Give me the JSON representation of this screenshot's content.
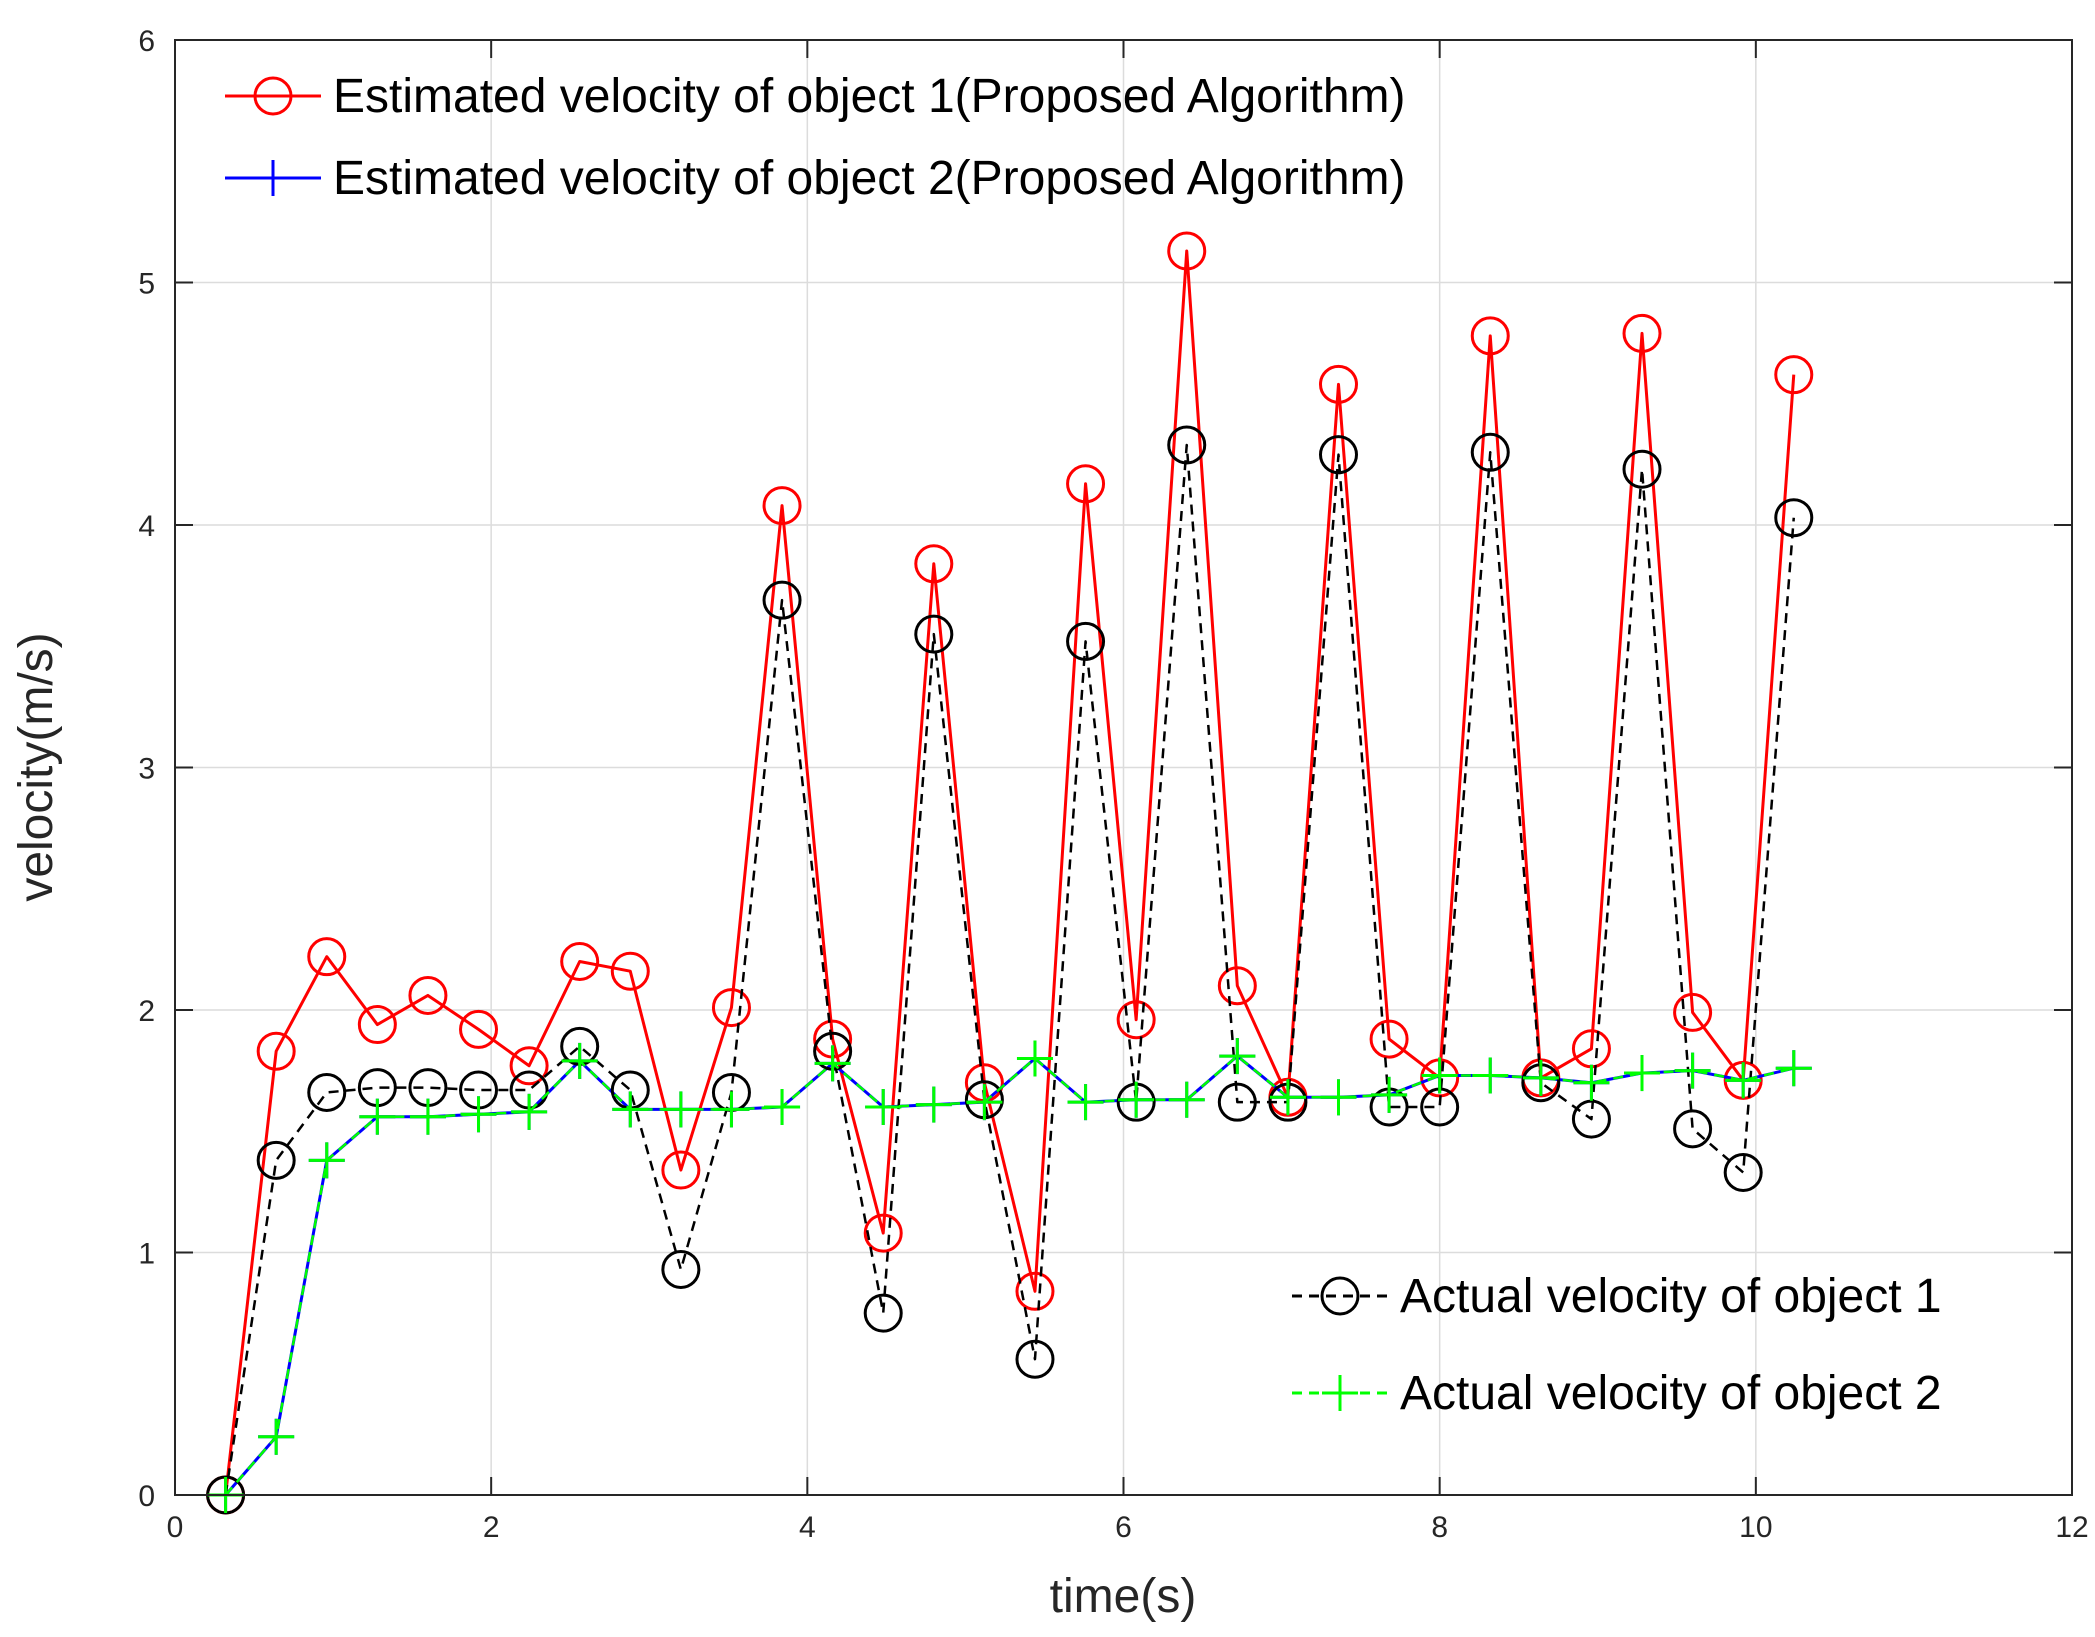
{
  "chart_data": {
    "type": "line",
    "title": "",
    "xlabel": "time(s)",
    "ylabel": "velocity(m/s)",
    "xlim": [
      0,
      12
    ],
    "ylim": [
      0,
      6
    ],
    "xticks": [
      0,
      2,
      4,
      6,
      8,
      10,
      12
    ],
    "yticks": [
      0,
      1,
      2,
      3,
      4,
      5,
      6
    ],
    "grid": true,
    "x": [
      0.32,
      0.64,
      0.96,
      1.28,
      1.6,
      1.92,
      2.24,
      2.56,
      2.88,
      3.2,
      3.52,
      3.84,
      4.16,
      4.48,
      4.8,
      5.12,
      5.44,
      5.76,
      6.08,
      6.4,
      6.72,
      7.04,
      7.36,
      7.68,
      8.0,
      8.32,
      8.64,
      8.96,
      9.28,
      9.6,
      9.92,
      10.24
    ],
    "series": [
      {
        "name": "Estimated velocity of object 1(Proposed Algorithm)",
        "color": "#ff0000",
        "line": "solid",
        "marker": "circle",
        "values": [
          0.0,
          1.83,
          2.22,
          1.94,
          2.06,
          1.92,
          1.77,
          2.2,
          2.16,
          1.34,
          2.01,
          4.08,
          1.88,
          1.08,
          3.84,
          1.7,
          0.84,
          4.17,
          1.96,
          5.13,
          2.1,
          1.64,
          4.58,
          1.88,
          1.72,
          4.78,
          1.72,
          1.84,
          4.79,
          1.99,
          1.71,
          4.62
        ]
      },
      {
        "name": "Estimated velocity of object 2(Proposed Algorithm)",
        "color": "#0000ff",
        "line": "solid",
        "marker": "plus",
        "values": [
          0.0,
          0.24,
          1.38,
          1.56,
          1.56,
          1.57,
          1.58,
          1.79,
          1.59,
          1.59,
          1.59,
          1.6,
          1.78,
          1.6,
          1.61,
          1.62,
          1.8,
          1.62,
          1.63,
          1.63,
          1.81,
          1.64,
          1.64,
          1.65,
          1.73,
          1.73,
          1.72,
          1.7,
          1.74,
          1.75,
          1.71,
          1.76
        ]
      },
      {
        "name": "Actual velocity of object 1",
        "color": "#000000",
        "line": "dashed",
        "marker": "circle",
        "values": [
          0.0,
          1.38,
          1.66,
          1.68,
          1.68,
          1.67,
          1.67,
          1.85,
          1.67,
          0.93,
          1.66,
          3.69,
          1.83,
          0.75,
          3.55,
          1.63,
          0.56,
          3.52,
          1.62,
          4.33,
          1.62,
          1.62,
          4.29,
          1.6,
          1.6,
          4.3,
          1.7,
          1.55,
          4.23,
          1.51,
          1.33,
          4.03
        ]
      },
      {
        "name": "Actual velocity of object 2",
        "color": "#00ff00",
        "line": "dashed",
        "marker": "plus",
        "values": [
          0.0,
          0.24,
          1.38,
          1.56,
          1.56,
          1.57,
          1.58,
          1.79,
          1.59,
          1.59,
          1.59,
          1.6,
          1.78,
          1.6,
          1.61,
          1.62,
          1.8,
          1.62,
          1.63,
          1.63,
          1.81,
          1.64,
          1.64,
          1.65,
          1.73,
          1.73,
          1.72,
          1.7,
          1.74,
          1.75,
          1.71,
          1.76
        ]
      }
    ],
    "legends": [
      {
        "placement": "top-left",
        "entries": [
          0,
          1
        ]
      },
      {
        "placement": "bottom-right",
        "entries": [
          2,
          3
        ]
      }
    ]
  }
}
